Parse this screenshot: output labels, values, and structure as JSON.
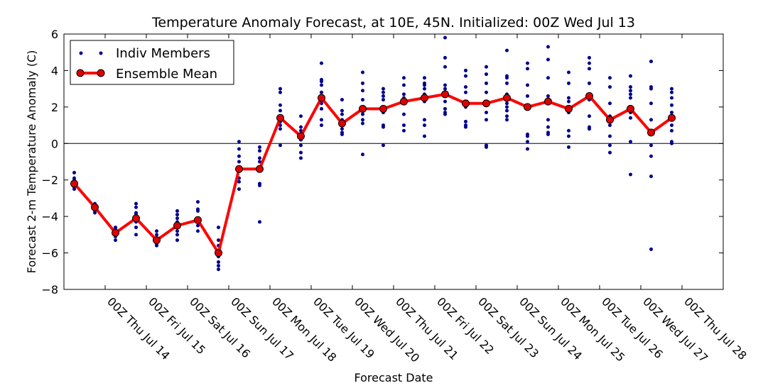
{
  "chart_data": {
    "type": "line",
    "title": "Temperature Anomaly Forecast, at 10E, 45N.  Initialized: 00Z Wed Jul 13",
    "xlabel": "Forecast Date",
    "ylabel": "Forecast 2-m Temperature Anomaly (C)",
    "ylim": [
      -8,
      6
    ],
    "yticks": [
      -8,
      -6,
      -4,
      -2,
      0,
      2,
      4,
      6
    ],
    "xlim": [
      -0.5,
      31.5
    ],
    "x_tick_labels": [
      "00Z Thu Jul 14",
      "00Z Fri Jul 15",
      "00Z Sat Jul 16",
      "00Z Sun Jul 17",
      "00Z Mon Jul 18",
      "00Z Tue Jul 19",
      "00Z Wed Jul 20",
      "00Z Thu Jul 21",
      "00Z Fri Jul 22",
      "00Z Sat Jul 23",
      "00Z Sun Jul 24",
      "00Z Mon Jul 25",
      "00Z Tue Jul 26",
      "00Z Wed Jul 27",
      "00Z Thu Jul 28"
    ],
    "x_tick_positions": [
      1.5,
      3.5,
      5.5,
      7.5,
      9.5,
      11.5,
      13.5,
      15.5,
      17.5,
      19.5,
      21.5,
      23.5,
      25.5,
      27.5,
      29.5
    ],
    "zero_line": true,
    "grid": false,
    "legend": {
      "placement": "top-left",
      "entries": [
        "Indiv Members",
        "Ensemble Mean"
      ]
    },
    "colors": {
      "members": "#00008b",
      "mean": "#ff0000",
      "mean_marker": "#dd0000"
    },
    "series": [
      {
        "name": "Ensemble Mean",
        "x": [
          0,
          1,
          2,
          3,
          4,
          5,
          6,
          7,
          8,
          9,
          10,
          11,
          12,
          13,
          14,
          15,
          16,
          17,
          18,
          19,
          20,
          21,
          22,
          23,
          24,
          25,
          26,
          27,
          28,
          29,
          30
        ],
        "values": [
          -2.2,
          -3.5,
          -4.9,
          -4.1,
          -5.3,
          -4.5,
          -4.2,
          -6.0,
          -1.4,
          -1.4,
          1.4,
          0.4,
          2.5,
          1.1,
          1.9,
          1.9,
          2.3,
          2.5,
          2.7,
          2.2,
          2.2,
          2.5,
          2.0,
          2.3,
          1.9,
          2.6,
          1.3,
          1.9,
          0.6,
          1.4,
          null
        ]
      },
      {
        "name": "Indiv Members",
        "type": "scatter",
        "points": [
          [
            0,
            [
              -1.6,
              -1.9,
              -2.0,
              -2.1,
              -2.2,
              -2.3,
              -2.4,
              -2.5
            ]
          ],
          [
            1,
            [
              -3.3,
              -3.4,
              -3.5,
              -3.6,
              -3.7,
              -3.8
            ]
          ],
          [
            2,
            [
              -4.6,
              -4.7,
              -4.8,
              -5.0,
              -5.1,
              -5.3
            ]
          ],
          [
            3,
            [
              -3.3,
              -3.5,
              -3.8,
              -3.9,
              -4.1,
              -4.3,
              -4.6,
              -5.0
            ]
          ],
          [
            4,
            [
              -4.8,
              -5.0,
              -5.2,
              -5.3,
              -5.5,
              -5.6
            ]
          ],
          [
            5,
            [
              -3.7,
              -3.9,
              -4.1,
              -4.3,
              -4.6,
              -4.8,
              -5.0,
              -5.3
            ]
          ],
          [
            6,
            [
              -3.2,
              -3.6,
              -3.7,
              -4.2,
              -4.5,
              -4.8
            ]
          ],
          [
            7,
            [
              -4.6,
              -5.3,
              -5.6,
              -5.9,
              -6.2,
              -6.5,
              -6.7,
              -6.9
            ]
          ],
          [
            8,
            [
              0.1,
              -0.3,
              -0.7,
              -1.0,
              -1.4,
              -1.9,
              -2.1,
              -2.5
            ]
          ],
          [
            9,
            [
              -0.2,
              -0.4,
              -0.8,
              -1.0,
              -1.3,
              -2.2,
              -2.3,
              -4.3
            ]
          ],
          [
            10,
            [
              3.0,
              2.8,
              2.1,
              1.8,
              1.5,
              1.2,
              1.0,
              0.8,
              -0.1
            ]
          ],
          [
            11,
            [
              1.5,
              0.9,
              0.7,
              0.5,
              0.2,
              -0.1,
              -0.5,
              -0.8
            ]
          ],
          [
            12,
            [
              4.4,
              3.5,
              3.4,
              3.2,
              2.8,
              2.4,
              2.2,
              1.9,
              1.3,
              1.0
            ]
          ],
          [
            13,
            [
              2.4,
              1.8,
              1.6,
              1.3,
              1.1,
              0.8,
              0.6,
              0.5
            ]
          ],
          [
            14,
            [
              3.9,
              3.3,
              2.9,
              2.4,
              2.0,
              1.8,
              1.6,
              1.3,
              1.1,
              -0.6
            ]
          ],
          [
            15,
            [
              3.0,
              2.8,
              2.6,
              2.4,
              1.9,
              1.7,
              1.0,
              0.9,
              -0.1
            ]
          ],
          [
            16,
            [
              3.6,
              3.2,
              2.7,
              2.5,
              2.4,
              2.3,
              1.6,
              1.0,
              0.7
            ]
          ],
          [
            17,
            [
              3.6,
              3.3,
              3.2,
              3.0,
              2.7,
              2.3,
              1.3,
              1.0,
              0.4
            ]
          ],
          [
            18,
            [
              5.8,
              4.7,
              4.2,
              3.2,
              3.0,
              2.7,
              2.3,
              1.9,
              1.7,
              1.6
            ]
          ],
          [
            19,
            [
              4.0,
              3.7,
              3.1,
              2.8,
              2.3,
              2.1,
              2.0,
              1.2,
              1.0,
              0.9
            ]
          ],
          [
            20,
            [
              4.2,
              3.8,
              3.3,
              2.8,
              2.3,
              1.7,
              1.3,
              -0.1,
              -0.2
            ]
          ],
          [
            21,
            [
              5.1,
              3.7,
              3.6,
              3.3,
              2.7,
              2.2,
              2.0,
              1.8,
              1.5,
              1.3
            ]
          ],
          [
            22,
            [
              4.4,
              4.1,
              3.2,
              2.6,
              2.0,
              1.9,
              0.5,
              0.4,
              0.1,
              -0.3
            ]
          ],
          [
            23,
            [
              5.3,
              4.6,
              3.6,
              2.6,
              2.3,
              1.3,
              0.9,
              0.6,
              0.5
            ]
          ],
          [
            24,
            [
              3.9,
              3.3,
              2.5,
              2.3,
              1.9,
              1.7,
              0.7,
              0.4,
              -0.2
            ]
          ],
          [
            25,
            [
              4.7,
              4.4,
              4.1,
              3.3,
              2.6,
              2.4,
              1.5,
              0.9,
              0.8
            ]
          ],
          [
            26,
            [
              3.6,
              3.1,
              2.2,
              1.5,
              1.2,
              1.0,
              0.4,
              -0.1,
              -0.5
            ]
          ],
          [
            27,
            [
              3.7,
              3.1,
              2.9,
              2.7,
              2.5,
              2.0,
              1.7,
              1.4,
              0.1,
              -1.7
            ]
          ],
          [
            28,
            [
              4.5,
              3.1,
              3.0,
              2.2,
              1.3,
              0.7,
              -0.1,
              -0.7,
              -1.8,
              -5.8
            ]
          ],
          [
            29,
            [
              3.0,
              2.8,
              2.5,
              2.1,
              1.7,
              1.3,
              1.0,
              0.7,
              0.1,
              0.0
            ]
          ]
        ]
      }
    ]
  }
}
